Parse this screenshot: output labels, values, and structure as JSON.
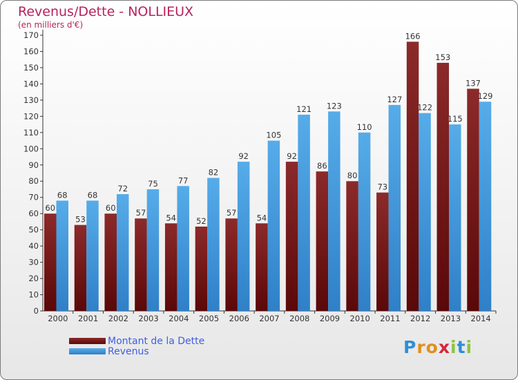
{
  "title": "Revenus/Dette - NOLLIEUX",
  "subtitle": "(en milliers d'€)",
  "colors": {
    "title": "#b5245a",
    "dette": "#8a2020",
    "revenus": "#4aa3e6",
    "legend_text": "#3f5fe0"
  },
  "legend": {
    "dette": "Montant de la Dette",
    "revenus": "Revenus"
  },
  "logo": {
    "text": "Proxiti"
  },
  "chart_data": {
    "type": "bar",
    "title": "Revenus/Dette - NOLLIEUX",
    "subtitle": "(en milliers d'€)",
    "xlabel": "",
    "ylabel": "",
    "ylim": [
      0,
      170
    ],
    "ytick_step": 10,
    "grid": false,
    "legend_position": "bottom-left",
    "categories": [
      "2000",
      "2001",
      "2002",
      "2003",
      "2004",
      "2005",
      "2006",
      "2007",
      "2008",
      "2009",
      "2010",
      "2011",
      "2012",
      "2013",
      "2014"
    ],
    "series": [
      {
        "name": "Montant de la Dette",
        "values": [
          60,
          53,
          60,
          57,
          54,
          52,
          57,
          54,
          92,
          86,
          80,
          73,
          166,
          153,
          137
        ]
      },
      {
        "name": "Revenus",
        "values": [
          68,
          68,
          72,
          75,
          77,
          82,
          92,
          105,
          121,
          123,
          110,
          127,
          122,
          115,
          129
        ]
      }
    ]
  }
}
